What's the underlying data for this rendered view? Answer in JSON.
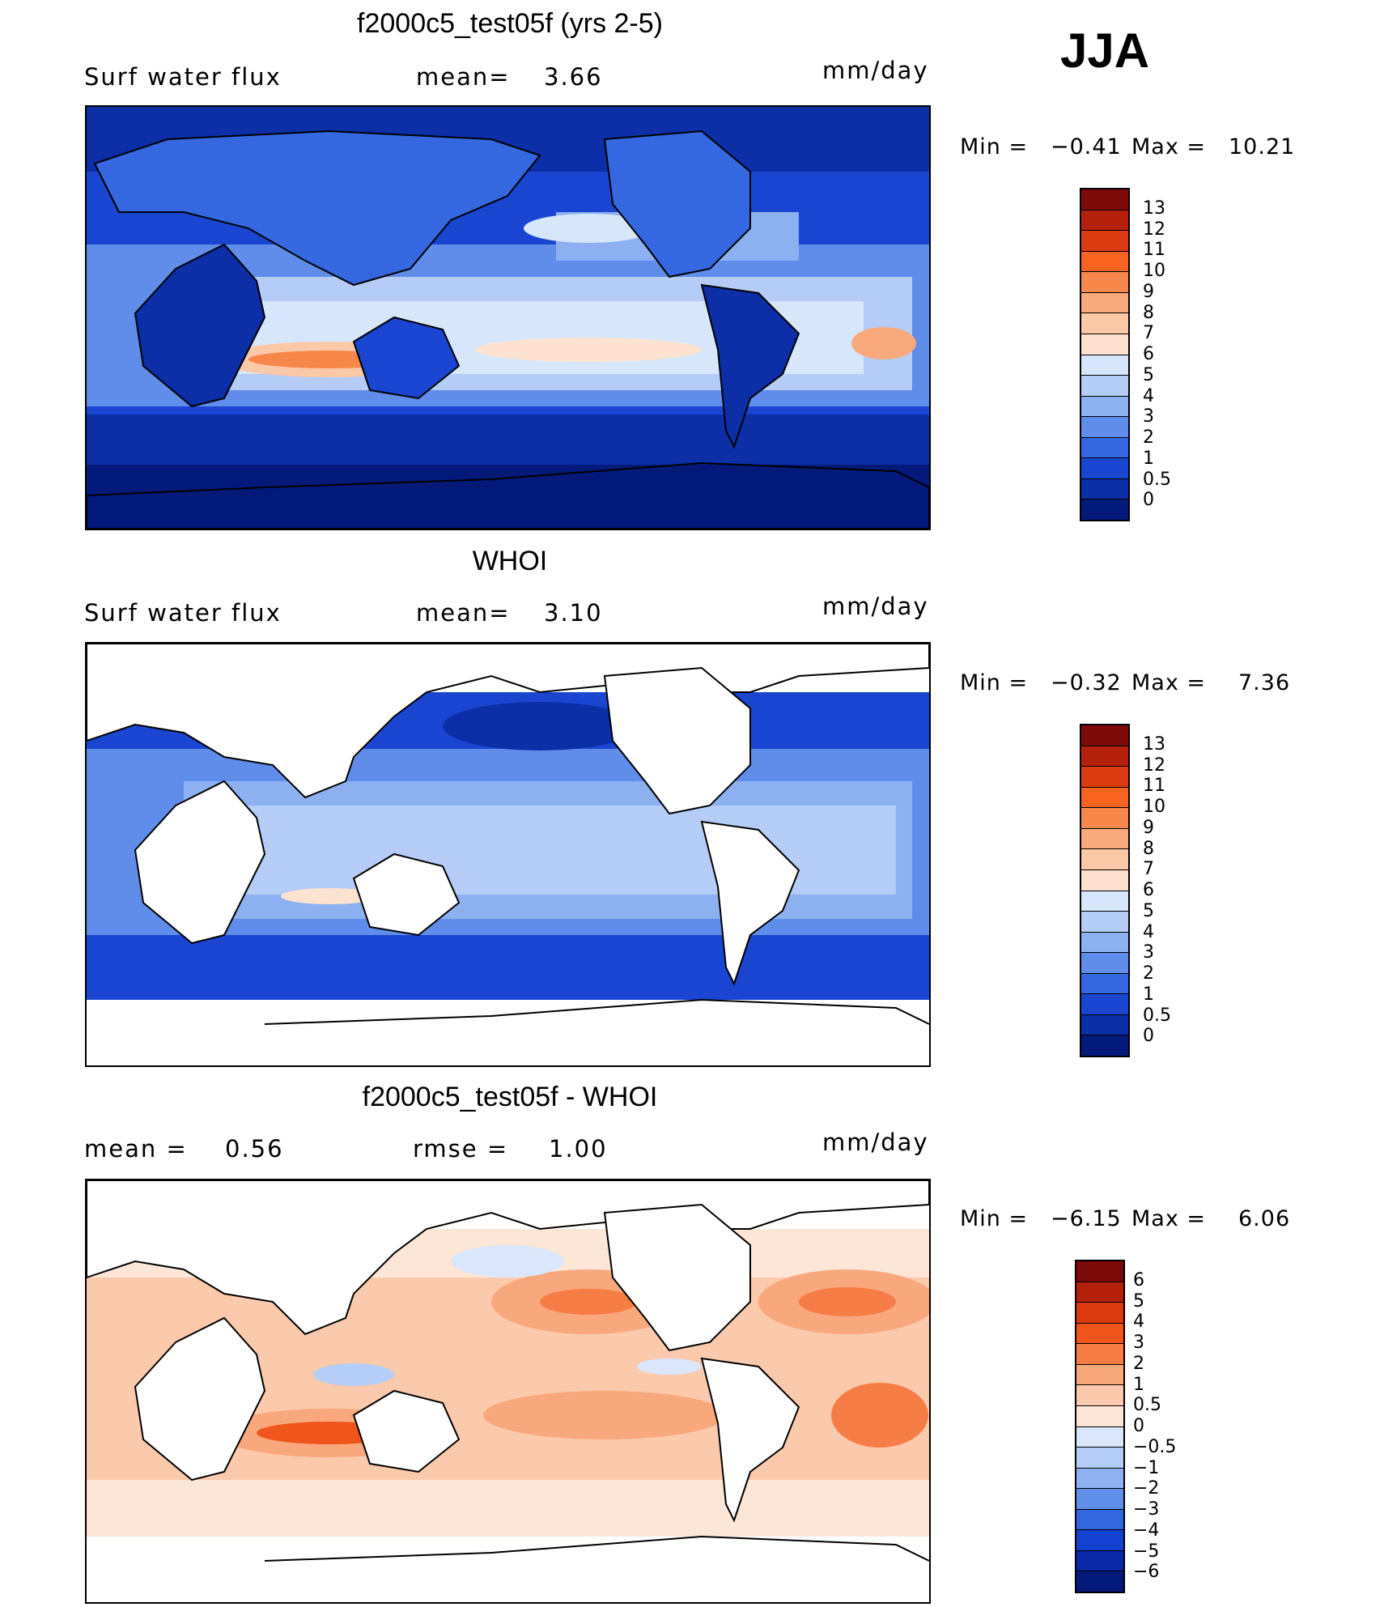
{
  "season": "JJA",
  "panels": [
    {
      "id": "model",
      "title": "f2000c5_test05f (yrs 2-5)",
      "left_text": "Surf  water  flux",
      "mid_text": "mean=",
      "mid_value": "3.66",
      "units": "mm/day",
      "min_label": "Min  =",
      "min_value": "−0.41",
      "max_label": "Max  =",
      "max_value": "10.21",
      "levels": [
        "13",
        "12",
        "11",
        "10",
        "9",
        "8",
        "7",
        "6",
        "5",
        "4",
        "3",
        "2",
        "1",
        "0.5",
        "0"
      ],
      "colors": [
        "#7d0a0a",
        "#b5200d",
        "#db3b12",
        "#f5631f",
        "#f7874b",
        "#f9a97c",
        "#fbc8a8",
        "#fde3cf",
        "#d6e6fb",
        "#b4ccf6",
        "#8cb0f0",
        "#5f8de9",
        "#3568e0",
        "#1a45d0",
        "#0c2ea7",
        "#031a7a"
      ]
    },
    {
      "id": "obs",
      "title": "WHOI",
      "left_text": "Surf  water  flux",
      "mid_text": "mean=",
      "mid_value": "3.10",
      "units": "mm/day",
      "min_label": "Min  =",
      "min_value": "−0.32",
      "max_label": "Max  =",
      "max_value": "7.36",
      "levels": [
        "13",
        "12",
        "11",
        "10",
        "9",
        "8",
        "7",
        "6",
        "5",
        "4",
        "3",
        "2",
        "1",
        "0.5",
        "0"
      ],
      "colors": [
        "#7d0a0a",
        "#b5200d",
        "#db3b12",
        "#f5631f",
        "#f7874b",
        "#f9a97c",
        "#fbc8a8",
        "#fde3cf",
        "#d6e6fb",
        "#b4ccf6",
        "#8cb0f0",
        "#5f8de9",
        "#3568e0",
        "#1a45d0",
        "#0c2ea7",
        "#031a7a"
      ]
    },
    {
      "id": "diff",
      "title": "f2000c5_test05f - WHOI",
      "left_text": "mean  =",
      "left_value": "0.56",
      "mid_text": "rmse  =",
      "mid_value": "1.00",
      "units": "mm/day",
      "min_label": "Min  =",
      "min_value": "−6.15",
      "max_label": "Max  =",
      "max_value": "6.06",
      "levels": [
        "6",
        "5",
        "4",
        "3",
        "2",
        "1",
        "0.5",
        "0",
        "−0.5",
        "−1",
        "−2",
        "−3",
        "−4",
        "−5",
        "−6"
      ],
      "colors": [
        "#7d0a0a",
        "#b5200d",
        "#db3b12",
        "#f0561c",
        "#f67d45",
        "#f9a77c",
        "#fbc9ab",
        "#fde6d5",
        "#d9e6fb",
        "#b6cdf7",
        "#8fb1f1",
        "#6090ea",
        "#3366df",
        "#1541d1",
        "#0828a9",
        "#031a7a"
      ]
    }
  ]
}
